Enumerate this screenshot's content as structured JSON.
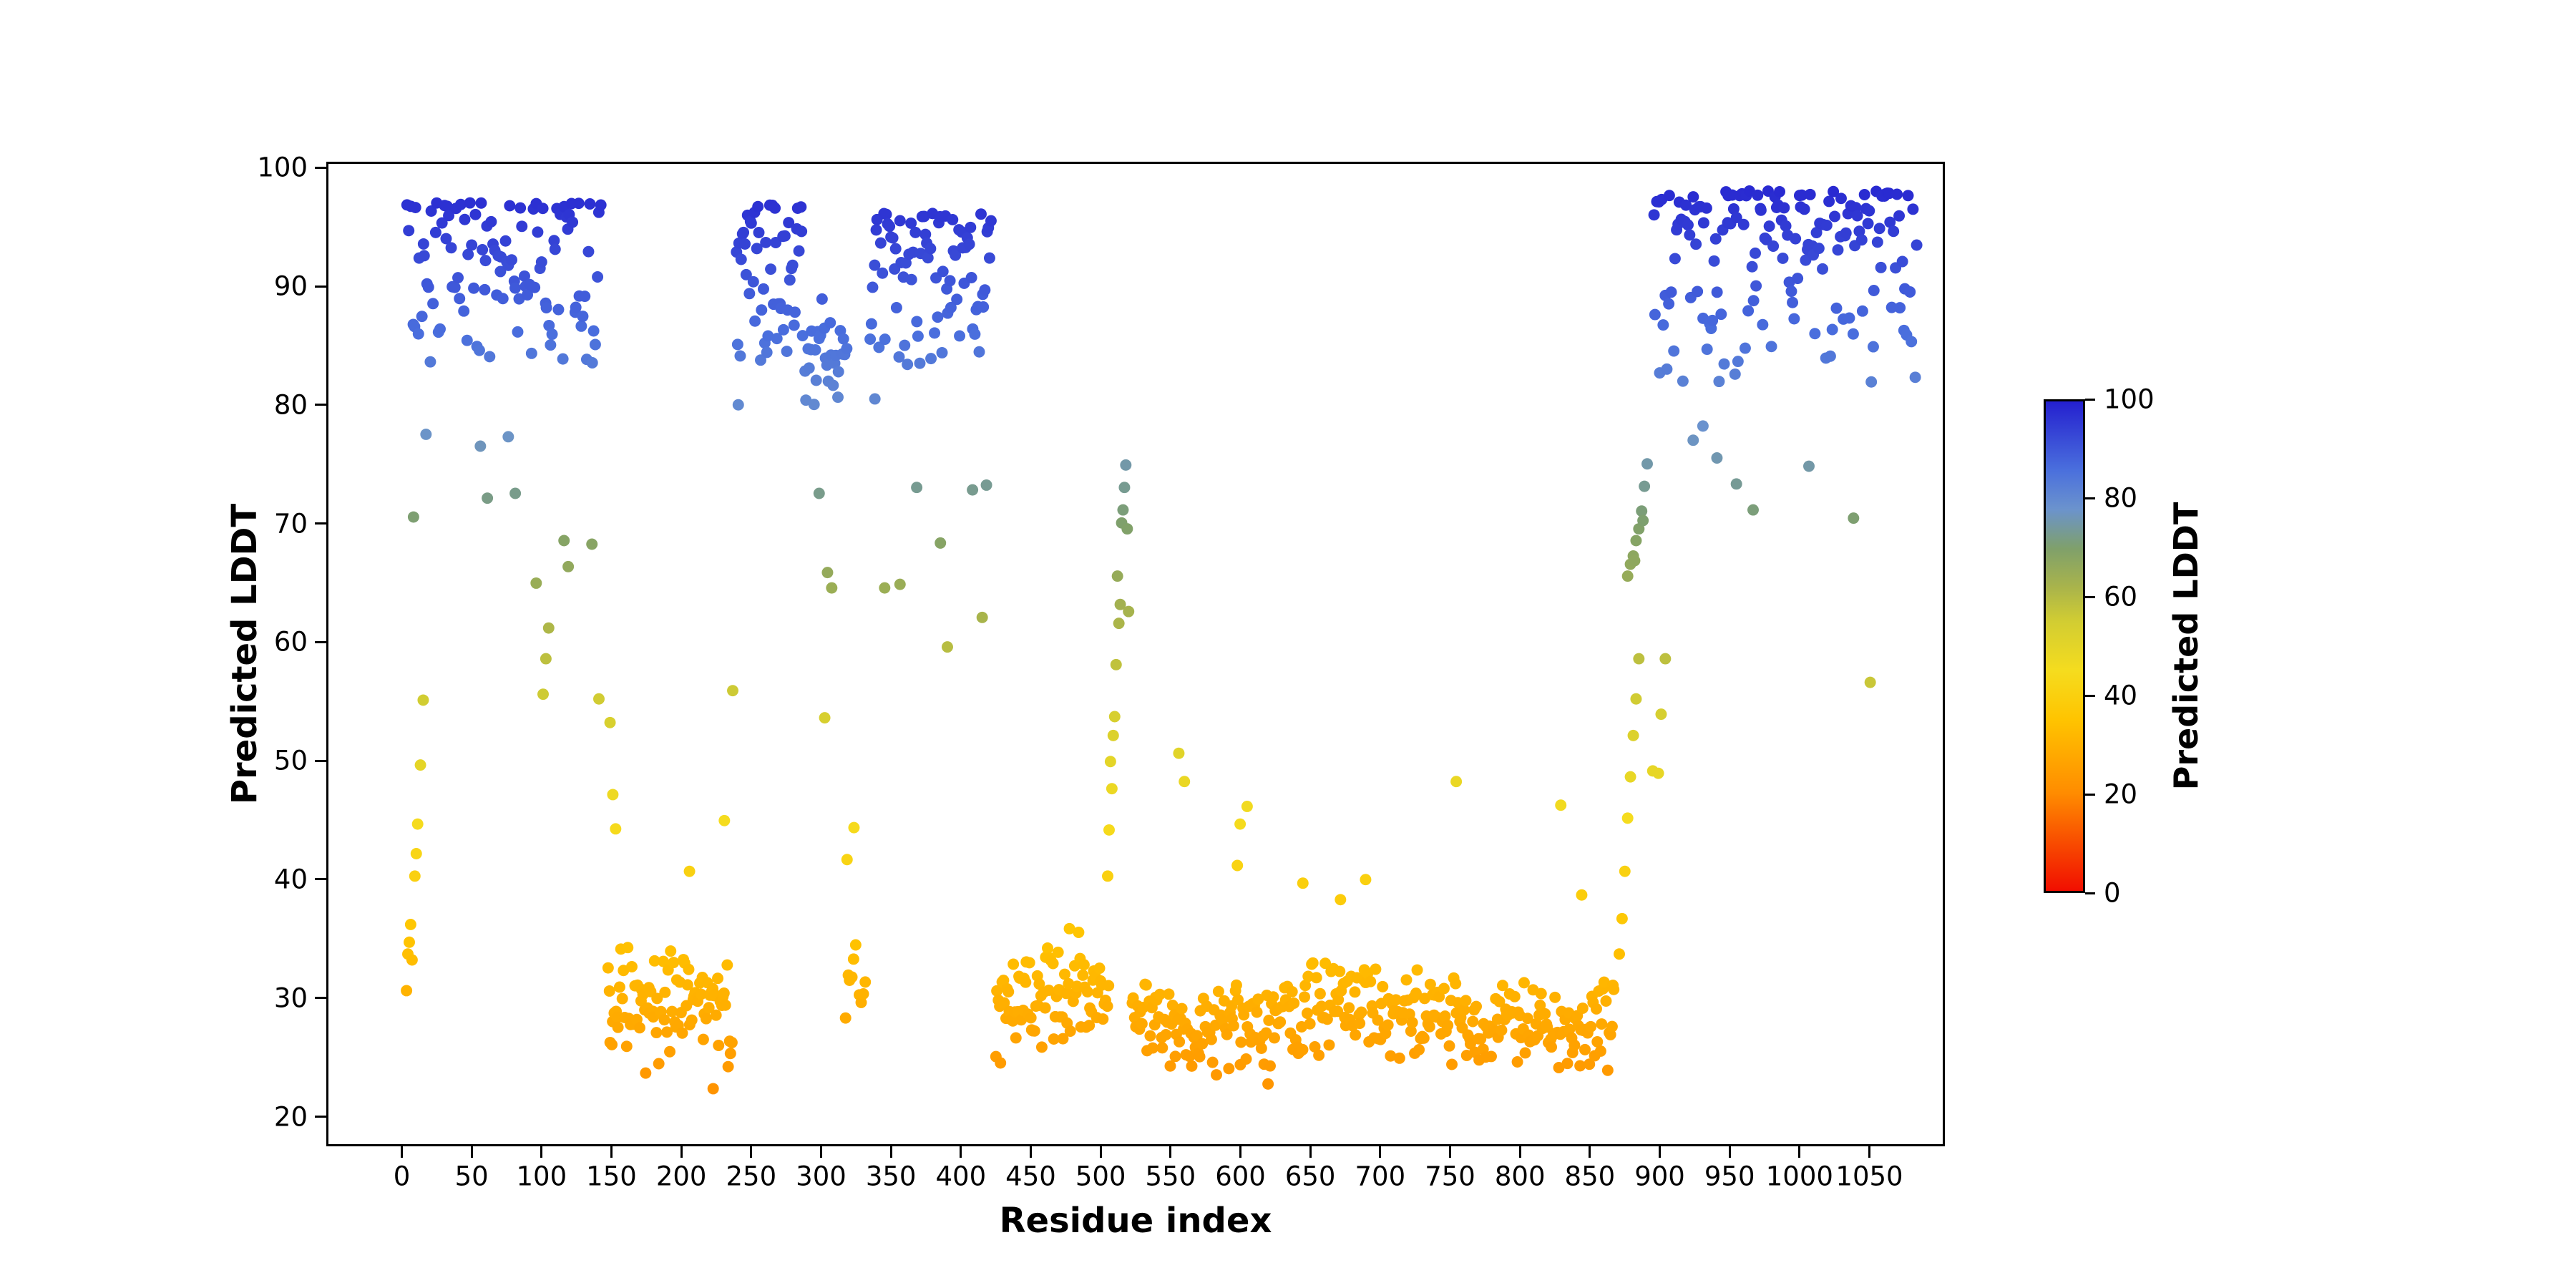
{
  "figure": {
    "xlabel": "Residue index",
    "ylabel": "Predicted LDDT",
    "colorbar_label": "Predicted LDDT",
    "background_color": "#ffffff",
    "spine_color": "#000000"
  },
  "chart_data": {
    "type": "scatter",
    "title": "",
    "xlabel": "Residue index",
    "ylabel": "Predicted LDDT",
    "xlim": [
      -54,
      1104
    ],
    "ylim": [
      17.5,
      100.5
    ],
    "x_ticks": [
      0,
      50,
      100,
      150,
      200,
      250,
      300,
      350,
      400,
      450,
      500,
      550,
      600,
      650,
      700,
      750,
      800,
      850,
      900,
      950,
      1000,
      1050
    ],
    "y_ticks": [
      20,
      30,
      40,
      50,
      60,
      70,
      80,
      90,
      100
    ],
    "grid": false,
    "legend": "none",
    "marker_radius": 8,
    "seed": 42,
    "colormap": {
      "label": "Predicted LDDT",
      "vmin": 0,
      "vmax": 100,
      "ticks": [
        0,
        20,
        40,
        60,
        80,
        100
      ],
      "stops": [
        {
          "v": 0,
          "c": "#f10e00"
        },
        {
          "v": 20,
          "c": "#ff8c00"
        },
        {
          "v": 35,
          "c": "#ffc400"
        },
        {
          "v": 45,
          "c": "#f5dc1e"
        },
        {
          "v": 55,
          "c": "#d2cd32"
        },
        {
          "v": 62,
          "c": "#a9b44b"
        },
        {
          "v": 70,
          "c": "#7fa06b"
        },
        {
          "v": 78,
          "c": "#6b93cd"
        },
        {
          "v": 86,
          "c": "#4a6fdd"
        },
        {
          "v": 100,
          "c": "#2420cf"
        }
      ]
    },
    "segments": [
      [
        2,
        142,
        112,
        83.5,
        97.2,
        "top"
      ],
      [
        146,
        236,
        96,
        22.8,
        35.5,
        "tri"
      ],
      [
        238,
        286,
        52,
        83.5,
        97.0,
        "top"
      ],
      [
        286,
        318,
        30,
        79.5,
        89.5,
        "tri"
      ],
      [
        316,
        332,
        10,
        27.5,
        35.0,
        "tri"
      ],
      [
        334,
        422,
        82,
        83.5,
        96.3,
        "top"
      ],
      [
        424,
        506,
        88,
        24.0,
        36.0,
        "tri"
      ],
      [
        522,
        562,
        40,
        24.0,
        32.0,
        "tri"
      ],
      [
        562,
        622,
        58,
        23.0,
        31.5,
        "tri"
      ],
      [
        622,
        702,
        78,
        24.0,
        34.0,
        "tri"
      ],
      [
        702,
        762,
        58,
        24.0,
        32.5,
        "tri"
      ],
      [
        762,
        822,
        58,
        23.5,
        31.5,
        "tri"
      ],
      [
        822,
        868,
        46,
        23.0,
        31.5,
        "tri"
      ],
      [
        896,
        1086,
        162,
        82.0,
        98.2,
        "top"
      ]
    ],
    "outliers": [
      [
        2,
        30.5
      ],
      [
        3,
        33.6
      ],
      [
        4,
        34.6
      ],
      [
        5,
        36.1
      ],
      [
        6,
        33.1
      ],
      [
        8,
        40.2
      ],
      [
        9,
        42.1
      ],
      [
        10,
        44.6
      ],
      [
        12,
        49.6
      ],
      [
        14,
        55.1
      ],
      [
        7,
        70.6
      ],
      [
        16,
        77.6
      ],
      [
        55,
        76.6
      ],
      [
        60,
        72.2
      ],
      [
        75,
        77.4
      ],
      [
        80,
        72.6
      ],
      [
        95,
        65.0
      ],
      [
        100,
        55.6
      ],
      [
        102,
        58.6
      ],
      [
        104,
        61.2
      ],
      [
        115,
        68.6
      ],
      [
        118,
        66.4
      ],
      [
        135,
        68.3
      ],
      [
        140,
        55.2
      ],
      [
        148,
        53.2
      ],
      [
        150,
        47.1
      ],
      [
        152,
        44.2
      ],
      [
        205,
        40.6
      ],
      [
        222,
        22.2
      ],
      [
        230,
        44.9
      ],
      [
        236,
        55.9
      ],
      [
        240,
        80.1
      ],
      [
        298,
        72.6
      ],
      [
        302,
        53.6
      ],
      [
        304,
        65.9
      ],
      [
        307,
        64.6
      ],
      [
        318,
        41.6
      ],
      [
        323,
        44.3
      ],
      [
        338,
        80.6
      ],
      [
        345,
        64.6
      ],
      [
        356,
        64.9
      ],
      [
        368,
        73.1
      ],
      [
        385,
        68.4
      ],
      [
        390,
        59.6
      ],
      [
        408,
        72.9
      ],
      [
        415,
        62.1
      ],
      [
        418,
        73.3
      ],
      [
        505,
        40.2
      ],
      [
        506,
        44.1
      ],
      [
        507,
        49.9
      ],
      [
        508,
        47.6
      ],
      [
        509,
        52.1
      ],
      [
        510,
        53.7
      ],
      [
        511,
        58.1
      ],
      [
        512,
        65.6
      ],
      [
        513,
        61.6
      ],
      [
        514,
        63.2
      ],
      [
        515,
        70.1
      ],
      [
        516,
        71.2
      ],
      [
        517,
        73.1
      ],
      [
        518,
        75.0
      ],
      [
        519,
        69.6
      ],
      [
        520,
        62.6
      ],
      [
        556,
        50.6
      ],
      [
        560,
        48.2
      ],
      [
        598,
        41.1
      ],
      [
        600,
        44.6
      ],
      [
        605,
        46.1
      ],
      [
        620,
        22.6
      ],
      [
        645,
        39.6
      ],
      [
        672,
        38.2
      ],
      [
        690,
        39.9
      ],
      [
        755,
        48.2
      ],
      [
        830,
        46.2
      ],
      [
        845,
        38.6
      ],
      [
        868,
        30.6
      ],
      [
        872,
        33.6
      ],
      [
        874,
        36.6
      ],
      [
        876,
        40.6
      ],
      [
        878,
        45.1
      ],
      [
        880,
        48.6
      ],
      [
        882,
        52.1
      ],
      [
        884,
        55.2
      ],
      [
        886,
        58.6
      ],
      [
        878,
        65.6
      ],
      [
        880,
        66.6
      ],
      [
        882,
        67.3
      ],
      [
        884,
        68.6
      ],
      [
        886,
        69.6
      ],
      [
        883,
        66.9
      ],
      [
        888,
        71.1
      ],
      [
        890,
        73.2
      ],
      [
        892,
        75.1
      ],
      [
        889,
        70.3
      ],
      [
        896,
        49.1
      ],
      [
        900,
        48.9
      ],
      [
        902,
        53.9
      ],
      [
        905,
        58.6
      ],
      [
        925,
        77.1
      ],
      [
        932,
        78.3
      ],
      [
        942,
        75.6
      ],
      [
        956,
        73.4
      ],
      [
        968,
        71.2
      ],
      [
        1008,
        74.9
      ],
      [
        1040,
        70.5
      ],
      [
        1052,
        56.6
      ]
    ]
  }
}
